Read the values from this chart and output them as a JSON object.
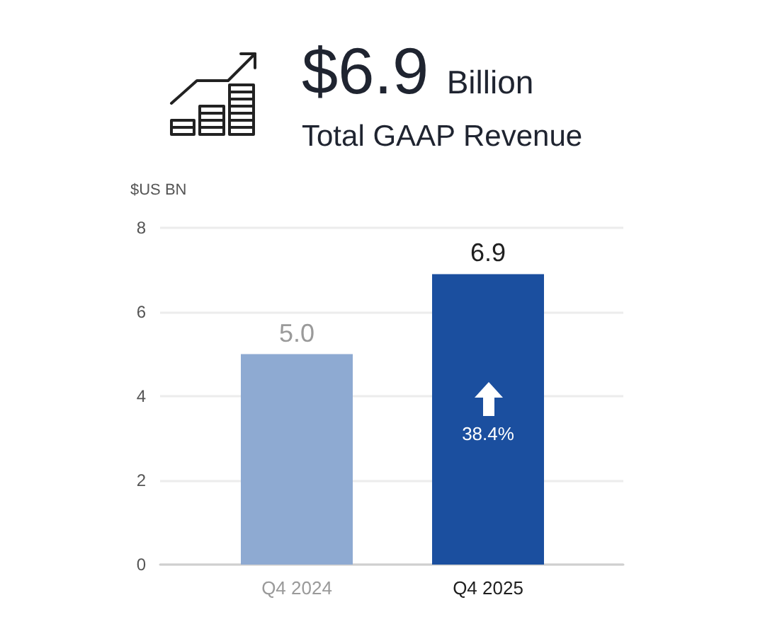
{
  "chart_data": {
    "type": "bar",
    "title": "$6.9 Billion",
    "subtitle": "Total GAAP Revenue",
    "ylabel": "$US BN",
    "categories": [
      "Q4 2024",
      "Q4 2025"
    ],
    "values": [
      5.0,
      6.9
    ],
    "colors": [
      "#8eaad2",
      "#1b4f9f"
    ],
    "value_labels": [
      "5.0",
      "6.9"
    ],
    "ylim": [
      0,
      8
    ],
    "yticks": [
      0,
      2,
      4,
      6,
      8
    ],
    "grid": "y",
    "annotations": [
      "38.4%"
    ]
  }
}
